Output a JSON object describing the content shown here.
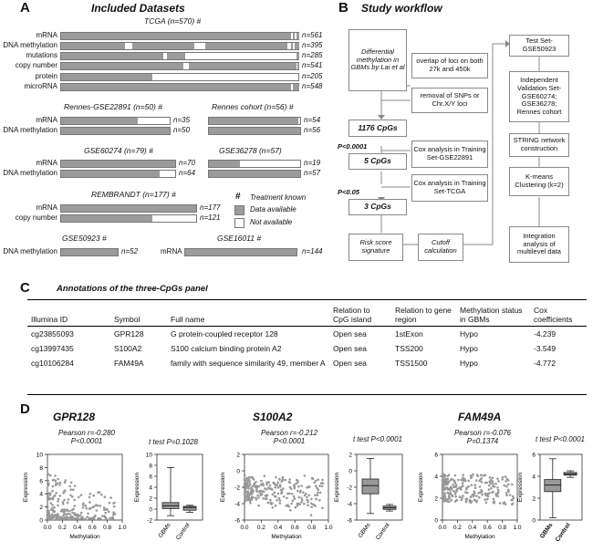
{
  "panelA": {
    "letter": "A",
    "title": "Included Datasets",
    "tcga": {
      "title": "TCGA (n=570) #",
      "rows": [
        {
          "label": "mRNA",
          "n": "n=561"
        },
        {
          "label": "DNA methylation",
          "n": "n=395"
        },
        {
          "label": "mutations",
          "n": "n=285"
        },
        {
          "label": "copy number",
          "n": "n=541"
        },
        {
          "label": "protein",
          "n": "n=205"
        },
        {
          "label": "microRNA",
          "n": "n=548"
        }
      ]
    },
    "rennes_gse": {
      "title": "Rennes-GSE22891 (n=50) #",
      "rows": [
        {
          "label": "mRNA",
          "n": "n=35"
        },
        {
          "label": "DNA methylation",
          "n": "n=50"
        }
      ]
    },
    "rennes_cohort": {
      "title": "Rennes cohort (n=56) #",
      "rows": [
        {
          "n": "n=54"
        },
        {
          "n": "n=56"
        }
      ]
    },
    "gse60274": {
      "title": "GSE60274 (n=79) #",
      "rows": [
        {
          "label": "mRNA",
          "n": "n=70"
        },
        {
          "label": "DNA methylation",
          "n": "n=64"
        }
      ]
    },
    "gse36278": {
      "title": "GSE36278 (n=57)",
      "rows": [
        {
          "n": "n=19"
        },
        {
          "n": "n=57"
        }
      ]
    },
    "rembrandt": {
      "title": "REMBRANDT (n=177) #",
      "rows": [
        {
          "label": "mRNA",
          "n": "n=177"
        },
        {
          "label": "copy number",
          "n": "n=121"
        }
      ]
    },
    "gse50923": {
      "title": "GSE50923 #",
      "label": "DNA methylation",
      "n": "n=52"
    },
    "gse16011": {
      "title": "GSE16011 #",
      "label": "mRNA",
      "n": "n=144"
    },
    "legend": {
      "hash": "#",
      "hash_label": "Treatment known",
      "avail": "Data available",
      "notavail": "Not available"
    }
  },
  "panelB": {
    "letter": "B",
    "title": "Study workflow",
    "left": {
      "start": "Differential methylation in GBMs by Lai et al",
      "cpg1176": "1176 CpGs",
      "p1": "P<0.0001",
      "cpg5": "5 CpGs",
      "p2": "P<0.05",
      "cpg3": "3 CpGs",
      "risk": "Risk score signature",
      "cutoff": "Cutoff calculation"
    },
    "mid": {
      "overlap": "overlap of loci on both 27k and 450k",
      "removal": "removal of SNPs or Chr.X/Y loci",
      "cox1": "Cox analysis in Training Set-GSE22891",
      "cox2": "Cox analysis in Training Set-TCGA"
    },
    "right": {
      "test": "Test Set-\nGSE50923",
      "indep": "Independent Validation Set-\nGSE60274;\nGSE36278;\nRennes cohort",
      "string": "STRING network construction",
      "kmeans": "K-means Clustering (k=2)",
      "integ": "Integration analysis of multilevel data"
    }
  },
  "panelC": {
    "letter": "C",
    "title": "Annotations of the three-CpGs panel",
    "headers": [
      "Illumina ID",
      "Symbol",
      "Full name",
      "Relation to CpG island",
      "Relation to gene region",
      "Methylation status in GBMs",
      "Cox coefficients"
    ],
    "rows": [
      [
        "cg23855093",
        "GPR128",
        "G protein-coupled receptor 128",
        "Open sea",
        "1stExon",
        "Hypo",
        "-4.239"
      ],
      [
        "cg13997435",
        "S100A2",
        "S100 calcium binding protein A2",
        "Open sea",
        "TSS200",
        "Hypo",
        "-3.549"
      ],
      [
        "cg10106284",
        "FAM49A",
        "family with sequence similarity 49, member A",
        "Open sea",
        "TSS1500",
        "Hypo",
        "-4.772"
      ]
    ]
  },
  "panelD": {
    "letter": "D",
    "genes": [
      {
        "name": "GPR128",
        "pearson": "Pearson r=-0.280",
        "pearson_p": "P<0.0001",
        "ttest": "t test P=0.1028",
        "scatter_y": {
          "min": 0,
          "max": 10,
          "ticks": [
            "0",
            "2",
            "4",
            "6",
            "8",
            "10"
          ]
        },
        "box_y": {
          "min": -2,
          "max": 10,
          "ticks": [
            "-2",
            "0",
            "2",
            "4",
            "6",
            "8",
            "10"
          ]
        },
        "box": {
          "gbm": [
            -1.2,
            0.1,
            0.6,
            1.2,
            7.6
          ],
          "ctrl": [
            -0.6,
            -0.2,
            0.3,
            0.5,
            0.7
          ]
        }
      },
      {
        "name": "S100A2",
        "pearson": "Pearson r=-0.212",
        "pearson_p": "P<0.0001",
        "ttest": "t test P<0.0001",
        "scatter_y": {
          "min": -6,
          "max": 2,
          "ticks": [
            "-6",
            "-4",
            "-2",
            "0",
            "2"
          ]
        },
        "box_y": {
          "min": -6,
          "max": 2,
          "ticks": [
            "-6",
            "-4",
            "-2",
            "0",
            "2"
          ]
        },
        "box": {
          "gbm": [
            -5.2,
            -2.8,
            -1.8,
            -1.0,
            1.5
          ],
          "ctrl": [
            -4.9,
            -4.7,
            -4.5,
            -4.3,
            -4.1
          ]
        }
      },
      {
        "name": "FAM49A",
        "pearson": "Pearson r=-0.076",
        "pearson_p": "P=0.1374",
        "ttest": "t test P<0.0001",
        "scatter_y": {
          "min": 0,
          "max": 6,
          "ticks": [
            "0",
            "2",
            "4",
            "6"
          ]
        },
        "box_y": {
          "min": 0,
          "max": 6,
          "ticks": [
            "0",
            "2",
            "4",
            "6"
          ]
        },
        "box": {
          "gbm": [
            0.2,
            2.6,
            3.2,
            3.7,
            5.6
          ],
          "ctrl": [
            3.9,
            4.1,
            4.2,
            4.35,
            4.5
          ]
        }
      }
    ],
    "x_ticks": [
      "0.0",
      "0.2",
      "0.4",
      "0.6",
      "0.8",
      "1.0"
    ],
    "xlabel": "Methylation",
    "ylabel": "Expression",
    "box_cats": [
      "GBMs",
      "Control"
    ]
  }
}
